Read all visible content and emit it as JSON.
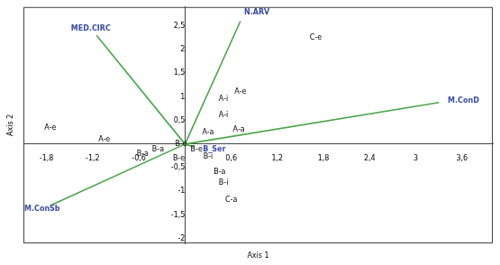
{
  "chart_data": {
    "type": "scatter",
    "x_label": "Axis 1",
    "y_label": "Axis 2",
    "xlim": [
      -2.1,
      4.0
    ],
    "ylim": [
      -2.1,
      2.9
    ],
    "xticks": [
      {
        "value": -1.8,
        "label": "-1,8"
      },
      {
        "value": -1.2,
        "label": "-1,2"
      },
      {
        "value": -0.6,
        "label": "-0,6"
      },
      {
        "value": 0.6,
        "label": "0,6"
      },
      {
        "value": 1.2,
        "label": "1,2"
      },
      {
        "value": 1.8,
        "label": "1,8"
      },
      {
        "value": 2.4,
        "label": "2,4"
      },
      3,
      {
        "value": 3.6,
        "label": "3,6"
      }
    ],
    "yticks": [
      -2,
      {
        "value": -1.5,
        "label": "-1,5"
      },
      -1,
      {
        "value": -0.5,
        "label": "-0,5"
      },
      {
        "value": 0.5,
        "label": "0,5"
      },
      1,
      {
        "value": 1.5,
        "label": "1,5"
      },
      2,
      {
        "value": 2.5,
        "label": "2,5"
      }
    ],
    "grid": false,
    "series": [
      {
        "type": "scatter",
        "marker": "text",
        "color": "#000000",
        "x": [
          -1.75,
          -1.05,
          1.7,
          0.72,
          0.5,
          0.5,
          0.7,
          0.3,
          -0.05,
          -0.35,
          -0.55,
          0.15,
          -0.08,
          0.3,
          0.45,
          0.5,
          0.6
        ],
        "values": [
          0.35,
          0.1,
          2.25,
          1.1,
          0.95,
          0.6,
          0.3,
          0.25,
          0.0,
          -0.12,
          -0.22,
          -0.12,
          -0.3,
          -0.27,
          -0.6,
          -0.82,
          -1.18
        ],
        "labels": [
          "A-e",
          "A-e",
          "C-e",
          "A-e",
          "A-i",
          "A-i",
          "A-a",
          "A-a",
          "B-e",
          "B-a",
          "B-a",
          "B-e",
          "B-e",
          "B-i",
          "B-a",
          "B-i",
          "C-a"
        ]
      },
      {
        "type": "vector",
        "color": "#4aa64a",
        "origin": [
          0,
          0
        ],
        "x": [
          -1.15,
          0.72,
          3.3,
          -1.75,
          0.12
        ],
        "values": [
          2.3,
          2.6,
          0.88,
          -1.3,
          -0.06
        ],
        "labels": [
          "MED.CIRC",
          "N.ARV",
          "M.ConD",
          "M.ConSb",
          "B_Ser"
        ]
      }
    ]
  }
}
